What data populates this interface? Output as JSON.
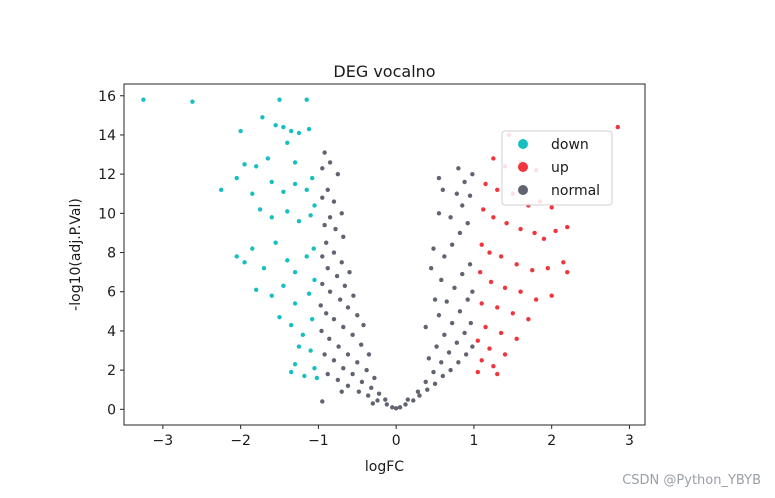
{
  "watermark": "CSDN @Python_YBYB",
  "chart_data": {
    "type": "scatter",
    "title": "DEG vocalno",
    "xlabel": "logFC",
    "ylabel": "-log10(adj.P.Val)",
    "xlim": [
      -3.5,
      3.2
    ],
    "ylim": [
      -0.8,
      16.6
    ],
    "xticks": [
      -3,
      -2,
      -1,
      0,
      1,
      2,
      3
    ],
    "yticks": [
      0,
      2,
      4,
      6,
      8,
      10,
      12,
      14,
      16
    ],
    "legend_position": "upper-right",
    "colors": {
      "down": "#17bfc3",
      "up": "#f0353f",
      "normal": "#5f6470"
    },
    "series": [
      {
        "name": "down",
        "color": "#17bfc3",
        "points": [
          [
            -3.25,
            15.8
          ],
          [
            -2.62,
            15.7
          ],
          [
            -1.5,
            15.8
          ],
          [
            -1.15,
            15.8
          ],
          [
            -2.0,
            14.2
          ],
          [
            -1.72,
            14.9
          ],
          [
            -1.55,
            14.5
          ],
          [
            -1.45,
            14.4
          ],
          [
            -1.35,
            14.2
          ],
          [
            -1.25,
            14.1
          ],
          [
            -1.12,
            14.3
          ],
          [
            -1.4,
            13.6
          ],
          [
            -1.95,
            12.5
          ],
          [
            -1.8,
            12.4
          ],
          [
            -1.65,
            12.8
          ],
          [
            -1.3,
            12.6
          ],
          [
            -2.05,
            11.8
          ],
          [
            -2.25,
            11.2
          ],
          [
            -1.85,
            11.0
          ],
          [
            -1.6,
            11.6
          ],
          [
            -1.45,
            11.1
          ],
          [
            -1.3,
            11.5
          ],
          [
            -1.15,
            11.2
          ],
          [
            -1.08,
            11.8
          ],
          [
            -1.75,
            10.2
          ],
          [
            -1.6,
            9.8
          ],
          [
            -1.4,
            10.1
          ],
          [
            -1.25,
            9.6
          ],
          [
            -1.1,
            9.9
          ],
          [
            -1.05,
            10.4
          ],
          [
            -2.05,
            7.8
          ],
          [
            -1.95,
            7.5
          ],
          [
            -1.85,
            8.2
          ],
          [
            -1.7,
            7.2
          ],
          [
            -1.55,
            8.5
          ],
          [
            -1.4,
            7.6
          ],
          [
            -1.3,
            7.0
          ],
          [
            -1.15,
            7.8
          ],
          [
            -1.06,
            8.2
          ],
          [
            -1.8,
            6.1
          ],
          [
            -1.6,
            5.8
          ],
          [
            -1.45,
            6.3
          ],
          [
            -1.3,
            5.4
          ],
          [
            -1.12,
            5.9
          ],
          [
            -1.05,
            6.6
          ],
          [
            -1.5,
            4.7
          ],
          [
            -1.35,
            4.3
          ],
          [
            -1.2,
            3.8
          ],
          [
            -1.08,
            4.6
          ],
          [
            -1.25,
            3.2
          ],
          [
            -1.1,
            3.0
          ],
          [
            -1.3,
            2.3
          ],
          [
            -1.05,
            2.1
          ],
          [
            -1.35,
            1.9
          ],
          [
            -1.18,
            1.7
          ],
          [
            -1.02,
            1.6
          ]
        ]
      },
      {
        "name": "up",
        "color": "#f0353f",
        "points": [
          [
            2.85,
            14.4
          ],
          [
            1.45,
            14.0
          ],
          [
            1.25,
            12.8
          ],
          [
            1.4,
            12.4
          ],
          [
            1.6,
            12.6
          ],
          [
            1.8,
            12.2
          ],
          [
            1.15,
            11.5
          ],
          [
            1.3,
            11.2
          ],
          [
            1.5,
            11.0
          ],
          [
            1.7,
            10.4
          ],
          [
            1.85,
            10.6
          ],
          [
            2.0,
            10.3
          ],
          [
            1.12,
            10.2
          ],
          [
            1.25,
            9.8
          ],
          [
            1.42,
            9.5
          ],
          [
            1.6,
            9.2
          ],
          [
            1.78,
            9.0
          ],
          [
            2.05,
            9.1
          ],
          [
            2.2,
            9.3
          ],
          [
            1.9,
            8.7
          ],
          [
            1.1,
            8.4
          ],
          [
            1.2,
            8.0
          ],
          [
            1.35,
            7.8
          ],
          [
            1.55,
            7.4
          ],
          [
            1.75,
            7.1
          ],
          [
            1.95,
            7.2
          ],
          [
            2.15,
            7.5
          ],
          [
            2.2,
            7.0
          ],
          [
            1.08,
            7.0
          ],
          [
            1.22,
            6.5
          ],
          [
            1.4,
            6.2
          ],
          [
            1.6,
            6.0
          ],
          [
            1.8,
            5.6
          ],
          [
            2.0,
            5.8
          ],
          [
            1.1,
            5.4
          ],
          [
            1.3,
            5.2
          ],
          [
            1.5,
            4.9
          ],
          [
            1.7,
            4.6
          ],
          [
            1.15,
            4.2
          ],
          [
            1.35,
            3.9
          ],
          [
            1.55,
            3.6
          ],
          [
            1.05,
            3.5
          ],
          [
            1.2,
            3.1
          ],
          [
            1.4,
            2.8
          ],
          [
            1.1,
            2.5
          ],
          [
            1.25,
            2.2
          ],
          [
            1.05,
            1.9
          ],
          [
            1.3,
            1.8
          ]
        ]
      },
      {
        "name": "normal",
        "color": "#5f6470",
        "points": [
          [
            -0.85,
            12.6
          ],
          [
            -0.92,
            13.1
          ],
          [
            -0.75,
            12.0
          ],
          [
            -0.95,
            12.3
          ],
          [
            -0.88,
            11.2
          ],
          [
            -0.8,
            10.6
          ],
          [
            -0.7,
            10.0
          ],
          [
            -0.95,
            10.8
          ],
          [
            -0.85,
            9.8
          ],
          [
            -0.78,
            9.2
          ],
          [
            -0.68,
            8.8
          ],
          [
            -0.92,
            9.4
          ],
          [
            -0.9,
            8.5
          ],
          [
            -0.8,
            8.0
          ],
          [
            -0.7,
            7.5
          ],
          [
            -0.6,
            7.0
          ],
          [
            -0.95,
            7.8
          ],
          [
            -0.88,
            7.2
          ],
          [
            -0.76,
            6.8
          ],
          [
            -0.66,
            6.3
          ],
          [
            -0.55,
            5.8
          ],
          [
            -0.95,
            6.4
          ],
          [
            -0.85,
            6.0
          ],
          [
            -0.72,
            5.6
          ],
          [
            -0.62,
            5.2
          ],
          [
            -0.5,
            4.8
          ],
          [
            -0.42,
            4.3
          ],
          [
            -0.97,
            5.3
          ],
          [
            -0.9,
            4.9
          ],
          [
            -0.8,
            4.6
          ],
          [
            -0.68,
            4.2
          ],
          [
            -0.56,
            3.8
          ],
          [
            -0.45,
            3.3
          ],
          [
            -0.35,
            2.8
          ],
          [
            -0.96,
            4.0
          ],
          [
            -0.86,
            3.6
          ],
          [
            -0.74,
            3.2
          ],
          [
            -0.62,
            2.8
          ],
          [
            -0.5,
            2.4
          ],
          [
            -0.38,
            2.0
          ],
          [
            -0.28,
            1.6
          ],
          [
            -0.92,
            2.8
          ],
          [
            -0.8,
            2.5
          ],
          [
            -0.68,
            2.1
          ],
          [
            -0.56,
            1.8
          ],
          [
            -0.44,
            1.4
          ],
          [
            -0.32,
            1.1
          ],
          [
            -0.22,
            0.8
          ],
          [
            -0.14,
            0.5
          ],
          [
            -0.88,
            1.8
          ],
          [
            -0.75,
            1.5
          ],
          [
            -0.62,
            1.2
          ],
          [
            -0.48,
            0.9
          ],
          [
            -0.36,
            0.7
          ],
          [
            -0.24,
            0.45
          ],
          [
            -0.12,
            0.25
          ],
          [
            -0.05,
            0.1
          ],
          [
            -0.95,
            0.4
          ],
          [
            -0.7,
            0.9
          ],
          [
            -0.3,
            0.3
          ],
          [
            0.0,
            0.05
          ],
          [
            0.05,
            0.1
          ],
          [
            0.12,
            0.25
          ],
          [
            0.22,
            0.45
          ],
          [
            0.3,
            0.7
          ],
          [
            0.4,
            1.0
          ],
          [
            0.5,
            1.3
          ],
          [
            0.6,
            1.7
          ],
          [
            0.7,
            2.0
          ],
          [
            0.8,
            2.4
          ],
          [
            0.9,
            2.8
          ],
          [
            0.98,
            3.2
          ],
          [
            0.15,
            0.5
          ],
          [
            0.28,
            0.9
          ],
          [
            0.38,
            1.4
          ],
          [
            0.48,
            1.9
          ],
          [
            0.58,
            2.4
          ],
          [
            0.68,
            2.9
          ],
          [
            0.78,
            3.4
          ],
          [
            0.88,
            3.9
          ],
          [
            0.96,
            4.4
          ],
          [
            0.42,
            2.6
          ],
          [
            0.52,
            3.2
          ],
          [
            0.62,
            3.8
          ],
          [
            0.72,
            4.4
          ],
          [
            0.82,
            5.0
          ],
          [
            0.92,
            5.6
          ],
          [
            0.98,
            6.0
          ],
          [
            0.55,
            4.8
          ],
          [
            0.65,
            5.5
          ],
          [
            0.75,
            6.2
          ],
          [
            0.85,
            6.9
          ],
          [
            0.95,
            7.4
          ],
          [
            0.48,
            8.2
          ],
          [
            0.62,
            7.8
          ],
          [
            0.72,
            8.4
          ],
          [
            0.82,
            9.0
          ],
          [
            0.92,
            9.5
          ],
          [
            0.55,
            10.0
          ],
          [
            0.7,
            9.8
          ],
          [
            0.85,
            10.4
          ],
          [
            0.95,
            10.9
          ],
          [
            0.6,
            11.2
          ],
          [
            0.78,
            11.0
          ],
          [
            0.88,
            11.6
          ],
          [
            0.55,
            11.8
          ],
          [
            0.98,
            12.0
          ],
          [
            0.8,
            12.3
          ],
          [
            0.5,
            5.6
          ],
          [
            0.58,
            6.6
          ],
          [
            0.45,
            7.2
          ],
          [
            0.38,
            4.2
          ]
        ]
      }
    ]
  }
}
